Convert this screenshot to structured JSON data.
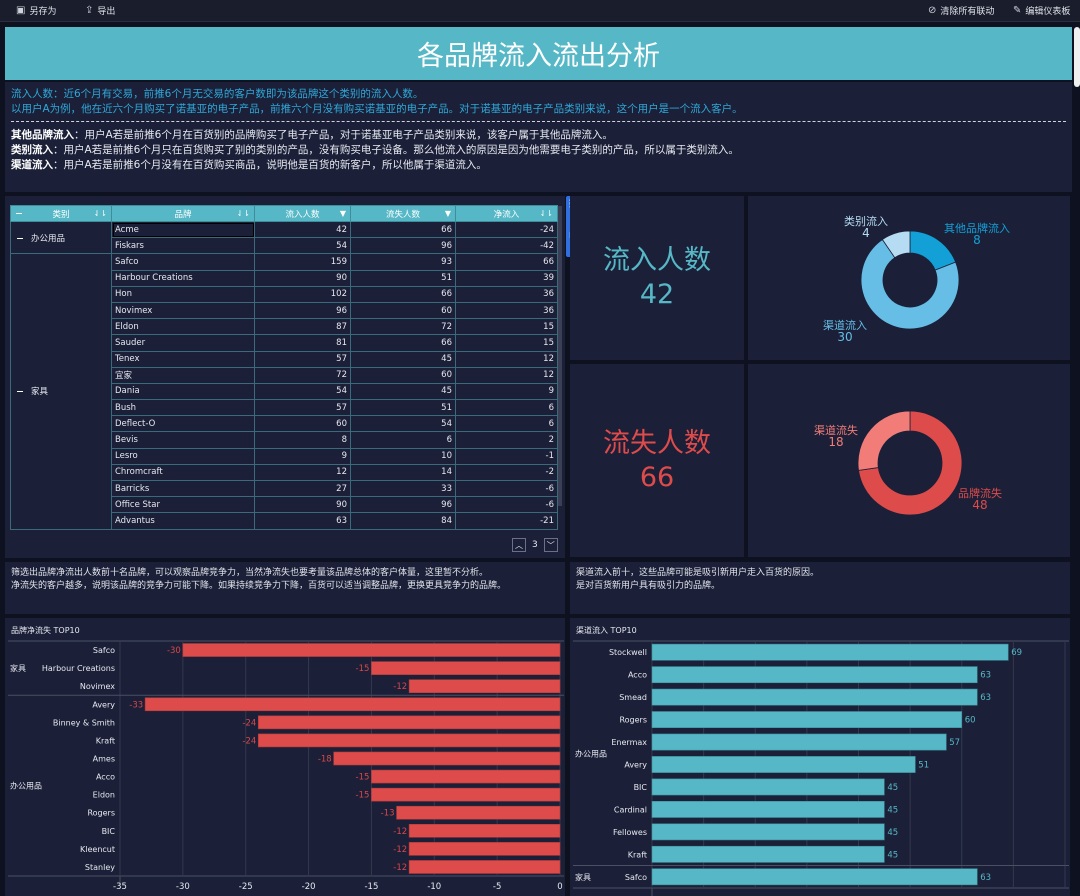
{
  "toolbar": {
    "save_as": "另存为",
    "export": "导出",
    "clear_links": "清除所有联动",
    "edit_dashboard": "编辑仪表板"
  },
  "title": "各品牌流入流出分析",
  "description": {
    "line1": "流入人数：近6个月有交易，前推6个月无交易的客户数即为该品牌这个类别的流入人数。",
    "line2": "以用户A为例，他在近六个月购买了诺基亚的电子产品，前推六个月没有购买诺基亚的电子产品。对于诺基亚的电子产品类别来说，这个用户是一个流入客户。",
    "items": [
      {
        "term": "其他品牌流入",
        "text": "：用户A若是前推6个月在百货别的品牌购买了电子产品，对于诺基亚电子产品类别来说，该客户属于其他品牌流入。"
      },
      {
        "term": "类别流入",
        "text": "：用户A若是前推6个月只在百货购买了别的类别的产品，没有购买电子设备。那么他流入的原因是因为他需要电子类别的产品，所以属于类别流入。"
      },
      {
        "term": "渠道流入",
        "text": "：用户A若是前推6个月没有在百货购买商品，说明他是百货的新客户，所以他属于渠道流入。"
      }
    ]
  },
  "table": {
    "headers": [
      "类别",
      "品牌",
      "流入人数",
      "流失人数",
      "净流入"
    ],
    "groups": [
      {
        "category": "办公用品",
        "rows": [
          [
            "Acme",
            42,
            66,
            -24
          ],
          [
            "Fiskars",
            54,
            96,
            -42
          ]
        ]
      },
      {
        "category": "家具",
        "rows": [
          [
            "Safco",
            159,
            93,
            66
          ],
          [
            "Harbour Creations",
            90,
            51,
            39
          ],
          [
            "Hon",
            102,
            66,
            36
          ],
          [
            "Novimex",
            96,
            60,
            36
          ],
          [
            "Eldon",
            87,
            72,
            15
          ],
          [
            "Sauder",
            81,
            66,
            15
          ],
          [
            "Tenex",
            57,
            45,
            12
          ],
          [
            "宜家",
            72,
            60,
            12
          ],
          [
            "Dania",
            54,
            45,
            9
          ],
          [
            "Bush",
            57,
            51,
            6
          ],
          [
            "Deflect-O",
            60,
            54,
            6
          ],
          [
            "Bevis",
            8,
            6,
            2
          ],
          [
            "Lesro",
            9,
            10,
            -1
          ],
          [
            "Chromcraft",
            12,
            14,
            -2
          ],
          [
            "Barricks",
            27,
            33,
            -6
          ],
          [
            "Office Star",
            90,
            96,
            -6
          ],
          [
            "Advantus",
            63,
            84,
            -21
          ]
        ]
      }
    ],
    "page": "3"
  },
  "kpi": {
    "inflow_label": "流入人数",
    "inflow_value": "42",
    "outflow_label": "流失人数",
    "outflow_value": "66"
  },
  "colors": {
    "teal": "#56b8c6",
    "red": "#dd4b4b",
    "blue": "#2fa8d8",
    "bg": "#1b2038"
  },
  "notes": {
    "left1": "筛选出品牌净流出人数前十名品牌，可以观察品牌竞争力，当然净流失也要考量该品牌总体的客户体量，这里暂不分析。",
    "left2": "净流失的客户越多，说明该品牌的竞争力可能下降。如果持续竞争力下降，百货可以适当调整品牌，更换更具竞争力的品牌。",
    "right1": "渠道流入前十，这些品牌可能是吸引新用户走入百货的原因。",
    "right2": "是对百货新用户具有吸引力的品牌。"
  },
  "chart_data": [
    {
      "type": "pie",
      "slices": [
        {
          "label": "其他品牌流入",
          "value": 8,
          "color": "#12a0d7"
        },
        {
          "label": "渠道流入",
          "value": 30,
          "color": "#66bde6"
        },
        {
          "label": "类别流入",
          "value": 4,
          "color": "#b5dcf3"
        }
      ]
    },
    {
      "type": "pie",
      "slices": [
        {
          "label": "品牌流失",
          "value": 48,
          "color": "#dd4b4b"
        },
        {
          "label": "渠道流失",
          "value": 18,
          "color": "#f27c78"
        }
      ]
    },
    {
      "type": "bar",
      "title": "品牌净流失 TOP10",
      "orientation": "horizontal",
      "xlim": [
        -35,
        0
      ],
      "xticks": [
        -35,
        -30,
        -25,
        -20,
        -15,
        -10,
        -5,
        0
      ],
      "groups": [
        {
          "name": "家具",
          "categories": [
            "Safco",
            "Harbour Creations",
            "Novimex"
          ],
          "values": [
            -30,
            -15,
            -12
          ]
        },
        {
          "name": "办公用品",
          "categories": [
            "Avery",
            "Binney & Smith",
            "Kraft",
            "Ames",
            "Acco",
            "Eldon",
            "Rogers",
            "BIC",
            "Kleencut",
            "Stanley"
          ],
          "values": [
            -33,
            -24,
            -24,
            -18,
            -15,
            -15,
            -13,
            -12,
            -12,
            -12
          ]
        }
      ]
    },
    {
      "type": "bar",
      "title": "渠道流入 TOP10",
      "orientation": "horizontal",
      "xlim": [
        0,
        80
      ],
      "groups": [
        {
          "name": "办公用品",
          "categories": [
            "Stockwell",
            "Acco",
            "Smead",
            "Rogers",
            "Enermax",
            "Avery",
            "BIC",
            "Cardinal",
            "Fellowes",
            "Kraft"
          ],
          "values": [
            69,
            63,
            63,
            60,
            57,
            51,
            45,
            45,
            45,
            45
          ]
        },
        {
          "name": "家具",
          "categories": [
            "Safco"
          ],
          "values": [
            63
          ]
        }
      ]
    }
  ]
}
